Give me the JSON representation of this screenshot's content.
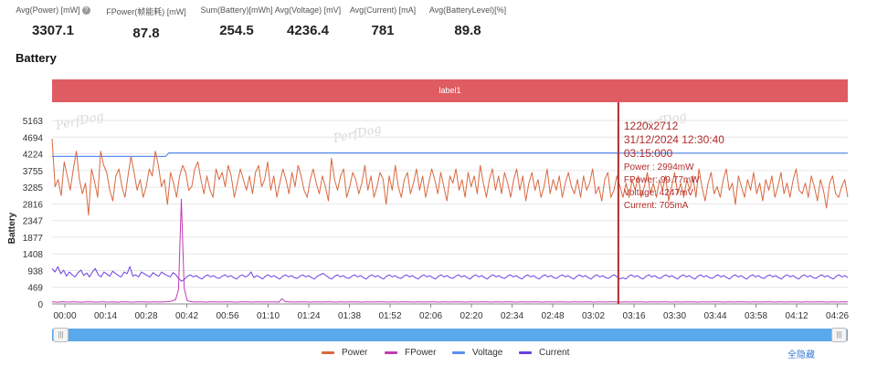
{
  "stats": [
    {
      "label": "Avg(Power) [mW]",
      "value": "3307.1",
      "help": true
    },
    {
      "label": "FPower(帧能耗) [mW]",
      "value": "87.8"
    },
    {
      "label": "Sum(Battery)[mWh]",
      "value": "254.5"
    },
    {
      "label": "Avg(Voltage) [mV]",
      "value": "4236.4"
    },
    {
      "label": "Avg(Current) [mA]",
      "value": "781"
    },
    {
      "label": "Avg(BatteryLevel)[%]",
      "value": "89.8"
    }
  ],
  "help_icon": "?",
  "section_title": "Battery",
  "label_bar": "label1",
  "watermark": "PerfDog",
  "slider_handle_glyph": "|||",
  "hide_all": "全隐藏",
  "tooltip": {
    "lines": [
      "1220x2712",
      "31/12/2024 12:30:40",
      "03:15:000",
      "Power  : 2994mW",
      "FPower: 99.77mW",
      "Voltage: 4247mV",
      "Current: 705mA"
    ]
  },
  "chart_data": {
    "type": "line",
    "ylabel": "Battery",
    "ylim": [
      0,
      5163
    ],
    "y_ticks": [
      0,
      469,
      938,
      1408,
      1877,
      2347,
      2816,
      3285,
      3755,
      4224,
      4694,
      5163
    ],
    "x_ticks": [
      "00:00",
      "00:14",
      "00:28",
      "00:42",
      "00:56",
      "01:10",
      "01:24",
      "01:38",
      "01:52",
      "02:06",
      "02:20",
      "02:34",
      "02:48",
      "03:02",
      "03:16",
      "03:30",
      "03:44",
      "03:58",
      "04:12",
      "04:26"
    ],
    "x_range_seconds": [
      0,
      274
    ],
    "cursor_x_seconds": 195,
    "legend_position": "bottom",
    "series": [
      {
        "name": "Power",
        "color": "#d9683f",
        "values": [
          4650,
          3300,
          3500,
          3050,
          4000,
          3600,
          3200,
          3800,
          4300,
          3500,
          3100,
          3400,
          2500,
          3800,
          3450,
          3000,
          4300,
          3900,
          3700,
          3200,
          2900,
          3600,
          3800,
          3300,
          3000,
          3600,
          4150,
          3700,
          3200,
          3500,
          3000,
          3300,
          3800,
          3600,
          4300,
          3900,
          3300,
          3500,
          2800,
          3700,
          3400,
          3000,
          3600,
          3900,
          3700,
          3200,
          3300,
          3800,
          4000,
          3500,
          3100,
          3600,
          3200,
          3000,
          3800,
          3500,
          3700,
          3300,
          3900,
          3600,
          3000,
          3400,
          3800,
          3500,
          3200,
          3600,
          3100,
          3700,
          3900,
          3300,
          3500,
          4000,
          3200,
          3600,
          3000,
          3400,
          3800,
          3500,
          3100,
          3700,
          3300,
          3900,
          3600,
          3200,
          3000,
          3500,
          3800,
          3400,
          3100,
          3600,
          3300,
          2900,
          4100,
          3500,
          3200,
          3600,
          3800,
          3000,
          3300,
          3700,
          3500,
          3100,
          3400,
          3900,
          3200,
          3600,
          3000,
          3300,
          3700,
          3500,
          2800,
          3600,
          3200,
          3900,
          3300,
          3000,
          3500,
          3700,
          3100,
          3400,
          3800,
          3200,
          3600,
          3000,
          3400,
          3800,
          3500,
          3100,
          3700,
          3300,
          2900,
          3600,
          3400,
          3800,
          3200,
          3500,
          3000,
          3700,
          3300,
          3600,
          3100,
          3900,
          3400,
          3000,
          3500,
          3800,
          3200,
          3600,
          3100,
          3700,
          3400,
          3000,
          3500,
          3800,
          3200,
          3600,
          2900,
          3400,
          3700,
          3200,
          3500,
          3000,
          3300,
          3800,
          3100,
          3500,
          3200,
          3600,
          3000,
          3400,
          3700,
          3300,
          3100,
          3500,
          3000,
          3600,
          3200,
          3400,
          3800,
          3100,
          3300,
          2900,
          3500,
          3700,
          3000,
          3200,
          3600,
          3300,
          3000,
          3400,
          2994,
          3500,
          3200,
          3600,
          3000,
          3300,
          3700,
          3100,
          3400,
          3000,
          3500,
          3200,
          3600,
          2900,
          3300,
          3700,
          3100,
          3400,
          3000,
          3500,
          3200,
          3600,
          3000,
          3800,
          3300,
          2900,
          3400,
          3700,
          3100,
          3300,
          3000,
          3500,
          3800,
          3200,
          3400,
          2800,
          3600,
          3300,
          3000,
          3500,
          3200,
          3700,
          3100,
          3400,
          2900,
          3500,
          3200,
          3600,
          3000,
          3300,
          3700,
          3100,
          3400,
          3000,
          3500,
          3800,
          3200,
          3100,
          3400,
          3000,
          3600,
          3300,
          2900,
          3500,
          3200,
          2700,
          3400,
          3600,
          3100,
          3000,
          3300,
          3500,
          3000
        ]
      },
      {
        "name": "FPower",
        "color": "#c23bb5",
        "values": [
          60,
          55,
          50,
          58,
          62,
          55,
          52,
          60,
          58,
          55,
          50,
          54,
          58,
          60,
          56,
          52,
          55,
          58,
          60,
          55,
          52,
          58,
          54,
          50,
          56,
          60,
          58,
          55,
          52,
          54,
          58,
          60,
          56,
          55,
          52,
          58,
          60,
          55,
          54,
          58,
          62,
          70,
          90,
          120,
          400,
          2950,
          450,
          100,
          70,
          60,
          55,
          58,
          60,
          55,
          52,
          56,
          58,
          60,
          55,
          54,
          58,
          60,
          56,
          55,
          52,
          54,
          58,
          60,
          56,
          55,
          52,
          58,
          60,
          55,
          54,
          58,
          60,
          56,
          55,
          52,
          150,
          70,
          60,
          58,
          55,
          54,
          58,
          60,
          56,
          55,
          52,
          58,
          60,
          55,
          54,
          58,
          60,
          56,
          55,
          52,
          58,
          60,
          55,
          54,
          58,
          60,
          56,
          55,
          52,
          58,
          60,
          55,
          54,
          58,
          60,
          56,
          55,
          52,
          58,
          60,
          55,
          54,
          58,
          60,
          56,
          55,
          52,
          58,
          60,
          55,
          54,
          58,
          60,
          56,
          55,
          52,
          58,
          60,
          55,
          54,
          58,
          60,
          56,
          55,
          52,
          58,
          60,
          55,
          54,
          58,
          60,
          56,
          55,
          52,
          58,
          60,
          55,
          54,
          58,
          60,
          56,
          55,
          52,
          58,
          60,
          55,
          54,
          58,
          60,
          56,
          55,
          52,
          58,
          60,
          55,
          54,
          58,
          60,
          56,
          55,
          52,
          58,
          60,
          55,
          54,
          58,
          60,
          56,
          55,
          52,
          58,
          60,
          55,
          54,
          58,
          60,
          56,
          55,
          52,
          58,
          60,
          55,
          54,
          58,
          60,
          56,
          55,
          52,
          58,
          60,
          55,
          54,
          58,
          60,
          56,
          55,
          52,
          58,
          60,
          55,
          54,
          58,
          60,
          56,
          55,
          52,
          58,
          60,
          55,
          54,
          58,
          60,
          56,
          55,
          52,
          58,
          60,
          55,
          54,
          58,
          60,
          56,
          55,
          52,
          58,
          60,
          55,
          54,
          58,
          60,
          56,
          55,
          52,
          58,
          60,
          55,
          54,
          58,
          60,
          56,
          55,
          52,
          58,
          60,
          55,
          54,
          58,
          60,
          56,
          55,
          52,
          58,
          60,
          55,
          54,
          58,
          60,
          56
        ]
      },
      {
        "name": "Voltage",
        "color": "#5b8ff0",
        "values": [
          4150,
          4150,
          4150,
          4150,
          4150,
          4150,
          4150,
          4150,
          4150,
          4150,
          4150,
          4150,
          4150,
          4150,
          4150,
          4150,
          4150,
          4150,
          4150,
          4150,
          4150,
          4150,
          4150,
          4150,
          4150,
          4150,
          4150,
          4150,
          4150,
          4150,
          4150,
          4150,
          4150,
          4150,
          4150,
          4150,
          4150,
          4150,
          4150,
          4250,
          4250,
          4250,
          4250,
          4250,
          4250,
          4250,
          4250,
          4250,
          4250,
          4250,
          4250,
          4250,
          4250,
          4250,
          4250,
          4250,
          4250,
          4250,
          4250,
          4250,
          4250,
          4250,
          4250,
          4250,
          4250,
          4250,
          4250,
          4250,
          4250,
          4250,
          4250,
          4250,
          4250,
          4250,
          4250,
          4250,
          4250,
          4250,
          4250,
          4250,
          4250,
          4250,
          4250,
          4250,
          4250,
          4250,
          4250,
          4250,
          4250,
          4250,
          4250,
          4250,
          4250,
          4250,
          4250,
          4250,
          4250,
          4250,
          4250,
          4250,
          4250,
          4250,
          4250,
          4250,
          4250,
          4250,
          4250,
          4250,
          4250,
          4250,
          4250,
          4250,
          4250,
          4250,
          4250,
          4250,
          4250,
          4250,
          4250,
          4250,
          4250,
          4250,
          4250,
          4250,
          4250,
          4250,
          4250,
          4250,
          4250,
          4250,
          4250,
          4250,
          4250,
          4250,
          4250,
          4250,
          4250,
          4250,
          4250,
          4250,
          4250,
          4250,
          4250,
          4250,
          4250,
          4250,
          4250,
          4250,
          4250,
          4250,
          4250,
          4250,
          4250,
          4250,
          4250,
          4250,
          4250,
          4250,
          4250,
          4250,
          4250,
          4250,
          4250,
          4250,
          4250,
          4250,
          4250,
          4250,
          4250,
          4250,
          4250,
          4250,
          4250,
          4250,
          4250,
          4250,
          4250,
          4250,
          4250,
          4250,
          4250,
          4250,
          4250,
          4250,
          4250,
          4250,
          4250,
          4250,
          4250,
          4247,
          4247,
          4247,
          4247,
          4247,
          4247,
          4247,
          4247,
          4247,
          4247,
          4247,
          4247,
          4247,
          4247,
          4247,
          4247,
          4247,
          4247,
          4247,
          4247,
          4247,
          4247,
          4247,
          4247,
          4247,
          4247,
          4247,
          4247,
          4247,
          4247,
          4247,
          4247,
          4247,
          4247,
          4247,
          4247,
          4247,
          4247,
          4247,
          4247,
          4247,
          4247,
          4247,
          4247,
          4247,
          4247,
          4247,
          4247,
          4247,
          4247,
          4247,
          4247,
          4247,
          4247,
          4247,
          4247,
          4247,
          4247,
          4247,
          4247,
          4247,
          4247,
          4247,
          4247,
          4247,
          4247,
          4247,
          4247,
          4247,
          4247,
          4247,
          4247,
          4247,
          4247,
          4247,
          4247,
          4247,
          4247
        ]
      },
      {
        "name": "Current",
        "color": "#6a40e0",
        "values": [
          1000,
          900,
          1050,
          850,
          950,
          780,
          900,
          820,
          760,
          880,
          950,
          800,
          870,
          760,
          900,
          1000,
          820,
          760,
          900,
          840,
          780,
          920,
          860,
          800,
          760,
          900,
          850,
          1050,
          780,
          820,
          760,
          900,
          850,
          800,
          760,
          880,
          820,
          780,
          900,
          840,
          800,
          760,
          880,
          820,
          700,
          640,
          700,
          780,
          820,
          760,
          800,
          740,
          700,
          780,
          820,
          760,
          800,
          740,
          720,
          780,
          820,
          760,
          800,
          740,
          700,
          780,
          820,
          760,
          800,
          900,
          740,
          800,
          760,
          700,
          780,
          820,
          760,
          800,
          740,
          700,
          780,
          820,
          760,
          800,
          740,
          720,
          780,
          820,
          760,
          800,
          740,
          700,
          780,
          820,
          860,
          800,
          740,
          700,
          780,
          820,
          760,
          800,
          740,
          720,
          780,
          820,
          760,
          800,
          740,
          700,
          780,
          820,
          760,
          800,
          740,
          700,
          780,
          820,
          760,
          800,
          740,
          720,
          780,
          820,
          760,
          800,
          740,
          700,
          780,
          820,
          760,
          800,
          740,
          700,
          780,
          820,
          760,
          800,
          740,
          720,
          780,
          820,
          760,
          800,
          740,
          700,
          780,
          820,
          760,
          800,
          740,
          700,
          780,
          820,
          760,
          800,
          740,
          720,
          780,
          820,
          760,
          800,
          740,
          700,
          780,
          820,
          760,
          800,
          740,
          700,
          780,
          820,
          760,
          800,
          740,
          720,
          780,
          820,
          760,
          800,
          740,
          700,
          780,
          820,
          760,
          800,
          740,
          700,
          780,
          820,
          760,
          800,
          740,
          720,
          780,
          820,
          760,
          705,
          740,
          700,
          780,
          820,
          760,
          800,
          740,
          700,
          780,
          820,
          760,
          800,
          740,
          720,
          780,
          820,
          760,
          800,
          740,
          700,
          780,
          820,
          760,
          800,
          740,
          700,
          780,
          820,
          760,
          800,
          740,
          720,
          780,
          820,
          760,
          800,
          740,
          700,
          780,
          820,
          760,
          800,
          740,
          700,
          780,
          820,
          760,
          800,
          740,
          720,
          780,
          820,
          760,
          800,
          740,
          700,
          780,
          820,
          760,
          800,
          740,
          700,
          780,
          820,
          760,
          800,
          740,
          720,
          780,
          820,
          760,
          800,
          740,
          700,
          780,
          820,
          760,
          800,
          740
        ]
      }
    ]
  }
}
